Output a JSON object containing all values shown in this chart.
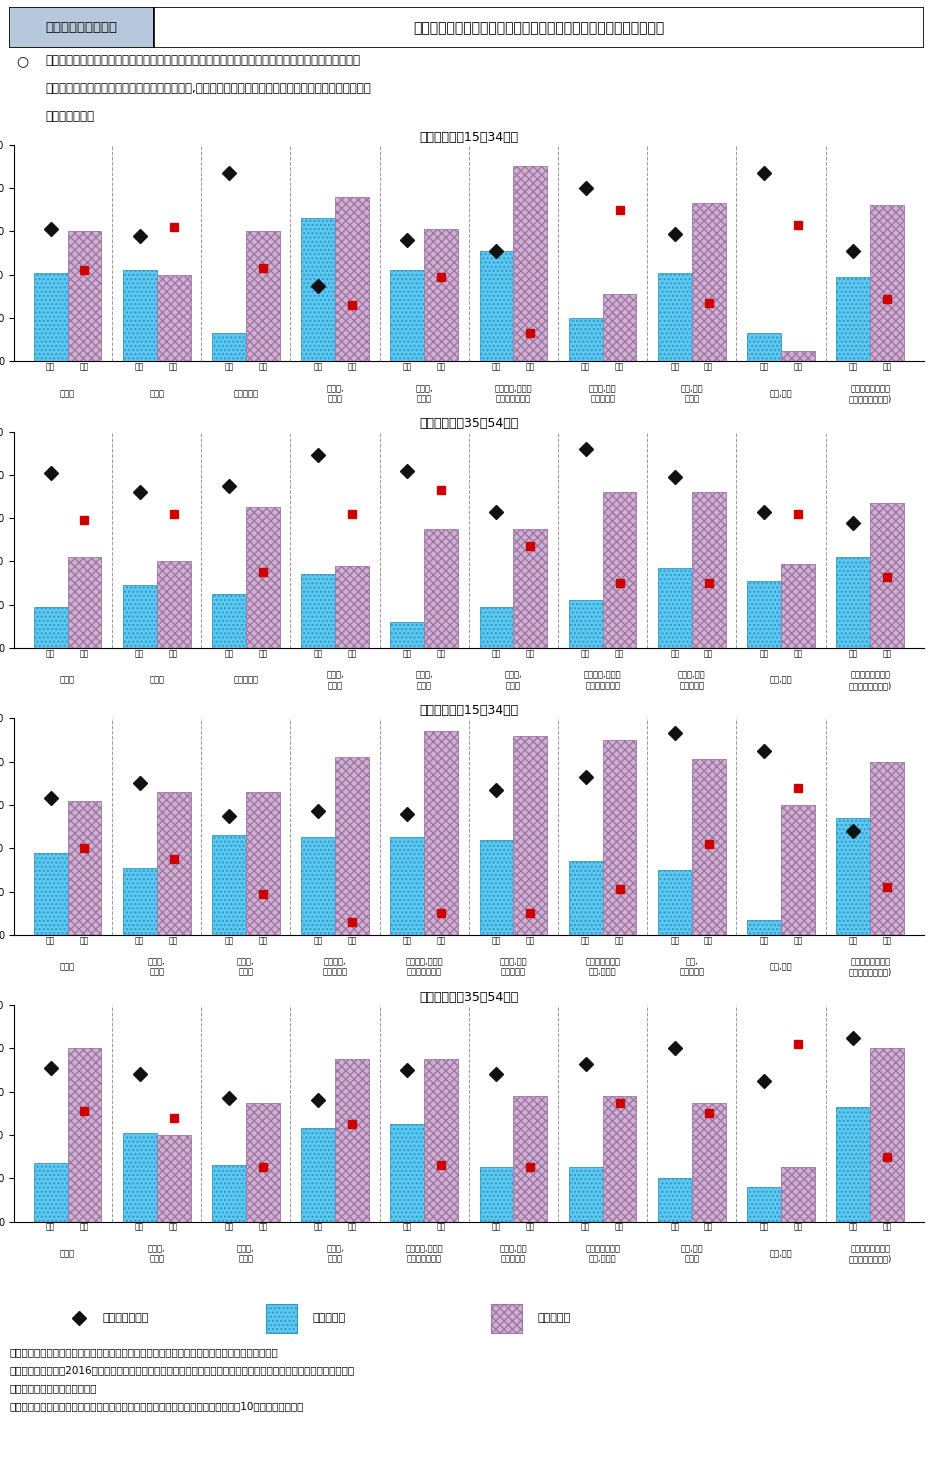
{
  "title_label": "第２－（４）－５図",
  "title_main": "産業別・性別・年齢別・移動形態別でみた転職入職の動向について",
  "subtitle_lines": [
    "　一般労働者（雇用期間の定めなし）間における転職入職者の移動形態をみると、「情報通信業」で",
    "は「産業間移動」「同一職種間移動」、「医療,福祉」では「同一産業内移動」「同一職種間移動」によ",
    "る転職が多い。"
  ],
  "panels": [
    {
      "title": "（１）男性（15～34歳）",
      "industries": [
        "建設業",
        "製造業",
        "情報通信業",
        "運輸業,\n郵便業",
        "卸売業,\n小売業",
        "学術研究,専門・\n技術サービス業",
        "宿泊業,飲食\nサービス業",
        "教育,学習\n支援業",
        "医療,福祉",
        "サービス業（他に\n分類されないもの)"
      ],
      "cyan_vals": [
        41,
        42,
        13,
        66,
        42,
        51,
        20,
        41,
        13,
        39
      ],
      "pink_vals": [
        60,
        40,
        60,
        76,
        61,
        90,
        31,
        73,
        5,
        72
      ],
      "diamond_vals": [
        61,
        58,
        87,
        35,
        56,
        51,
        80,
        59,
        87,
        51
      ],
      "square_vals": [
        42,
        62,
        43,
        26,
        39,
        13,
        70,
        27,
        63,
        29
      ]
    },
    {
      "title": "（２）男性（35～54歳）",
      "industries": [
        "建設業",
        "製造業",
        "情報通信業",
        "運輸業,\n郵便業",
        "卸売業,\n小売業",
        "金融業,\n保険業",
        "学術研究,専門・\n技術サービス業",
        "宿泊業,飲食\nサービス業",
        "医療,福祉",
        "サービス業（他に\n分類されないもの)"
      ],
      "cyan_vals": [
        19,
        29,
        25,
        34,
        12,
        19,
        22,
        37,
        31,
        42
      ],
      "pink_vals": [
        42,
        40,
        65,
        38,
        55,
        55,
        72,
        72,
        39,
        67
      ],
      "diamond_vals": [
        81,
        72,
        75,
        89,
        82,
        63,
        92,
        79,
        63,
        58
      ],
      "square_vals": [
        59,
        62,
        35,
        62,
        73,
        47,
        30,
        30,
        62,
        33
      ]
    },
    {
      "title": "（３）女性（15～34歳）",
      "industries": [
        "製造業",
        "卸売業,\n小売業",
        "金融業,\n保険業",
        "不動産業,\n物品賃貸業",
        "学術研究,専門・\n技術サービス業",
        "宿泊業,飲食\nサービス業",
        "生活関連サービ\nス業,娯楽業",
        "教育,\n学習支援業",
        "医療,福祉",
        "サービス業（他に\n分類されないもの)"
      ],
      "cyan_vals": [
        38,
        31,
        46,
        45,
        45,
        44,
        34,
        30,
        7,
        54
      ],
      "pink_vals": [
        62,
        66,
        66,
        82,
        94,
        92,
        90,
        81,
        60,
        80
      ],
      "diamond_vals": [
        63,
        70,
        55,
        57,
        56,
        67,
        73,
        93,
        85,
        48
      ],
      "square_vals": [
        40,
        35,
        19,
        6,
        10,
        10,
        21,
        42,
        68,
        22
      ]
    },
    {
      "title": "（４）女性（35～54歳）",
      "industries": [
        "製造業",
        "運輸業,\n郵便業",
        "卸売業,\n小売業",
        "金融業,\n保険業",
        "学術研究,専門・\n技術サービス業",
        "宿泊業,飲食\nサービス業",
        "生活関連サービ\nス業,娯楽業",
        "教育,学習\n支援業",
        "医療,福祉",
        "サービス業（他に\n分類されないもの)"
      ],
      "cyan_vals": [
        27,
        41,
        26,
        43,
        45,
        25,
        25,
        20,
        16,
        53
      ],
      "pink_vals": [
        80,
        40,
        55,
        75,
        75,
        58,
        58,
        55,
        25,
        80
      ],
      "diamond_vals": [
        71,
        68,
        57,
        56,
        70,
        68,
        73,
        80,
        65,
        85
      ],
      "square_vals": [
        51,
        48,
        25,
        45,
        26,
        25,
        55,
        50,
        82,
        30
      ]
    }
  ],
  "legend_items": [
    {
      "type": "diamond",
      "color": "#111111",
      "label": "同一職種間移動"
    },
    {
      "type": "bar_cyan",
      "color": "#5BC8F5",
      "hatch": "....",
      "label": "他職種転換"
    },
    {
      "type": "bar_pink",
      "color": "#D4B0CC",
      "hatch": "xxxx",
      "label": "産業間移動"
    }
  ],
  "notes": [
    "資料出所　厚生労働省「雇用動向調査」の個票を厚生労働省労働政策担当参事官室にて独自集計",
    "（注）　１）数値は2016年時のデータとなっており、集計対象は一般労働者（雇用期間の定めなし）間における転職者",
    "　　　　　　に限定している。",
    "　　　　２）示している産業は、各性別、各年齢階級において転職入職者数の上位10産業としている。"
  ],
  "cyan_color": "#5BC8F5",
  "pink_color": "#D4B0CC",
  "cyan_edge": "#3399BB",
  "pink_edge": "#9977AA",
  "bar_width": 0.38,
  "title_bg": "#B8C8DC",
  "panel_bg": "#FFFFFF"
}
